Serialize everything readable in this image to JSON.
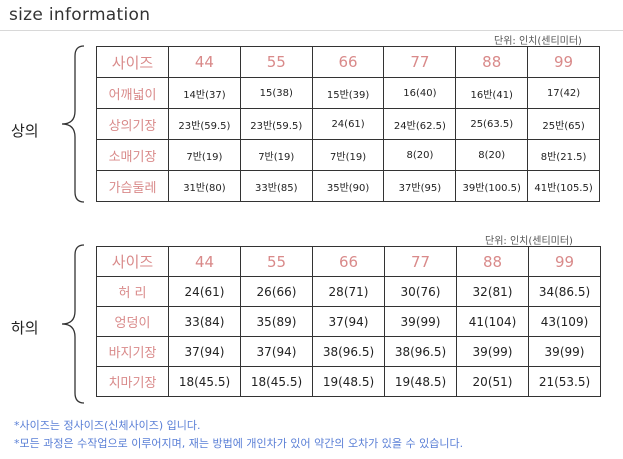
{
  "title": "size  information",
  "top": {
    "side_label": "상의",
    "unit_note": "단위: 인치(센티미터)",
    "table": {
      "header_label": "사이즈",
      "sizes": [
        "44",
        "55",
        "66",
        "77",
        "88",
        "99"
      ],
      "rows": [
        {
          "label": "어깨넓이",
          "values": [
            "14반(37)",
            "15(38)",
            "15반(39)",
            "16(40)",
            "16반(41)",
            "17(42)"
          ]
        },
        {
          "label": "상의기장",
          "values": [
            "23반(59.5)",
            "23반(59.5)",
            "24(61)",
            "24반(62.5)",
            "25(63.5)",
            "25반(65)"
          ]
        },
        {
          "label": "소매기장",
          "values": [
            "7반(19)",
            "7반(19)",
            "7반(19)",
            "8(20)",
            "8(20)",
            "8반(21.5)"
          ]
        },
        {
          "label": "가슴둘레",
          "values": [
            "31반(80)",
            "33반(85)",
            "35반(90)",
            "37반(95)",
            "39반(100.5)",
            "41반(105.5)"
          ]
        }
      ]
    }
  },
  "bottom": {
    "side_label": "하의",
    "unit_note": "단위: 인치(센티미터)",
    "table": {
      "header_label": "사이즈",
      "sizes": [
        "44",
        "55",
        "66",
        "77",
        "88",
        "99"
      ],
      "rows": [
        {
          "label": "허 리",
          "values": [
            "24(61)",
            "26(66)",
            "28(71)",
            "30(76)",
            "32(81)",
            "34(86.5)"
          ]
        },
        {
          "label": "엉덩이",
          "values": [
            "33(84)",
            "35(89)",
            "37(94)",
            "39(99)",
            "41(104)",
            "43(109)"
          ]
        },
        {
          "label": "바지기장",
          "values": [
            "37(94)",
            "37(94)",
            "38(96.5)",
            "38(96.5)",
            "39(99)",
            "39(99)"
          ]
        },
        {
          "label": "치마기장",
          "values": [
            "18(45.5)",
            "18(45.5)",
            "19(48.5)",
            "19(48.5)",
            "20(51)",
            "21(53.5)"
          ]
        }
      ]
    }
  },
  "notes": [
    "*사이즈는 정사이즈(신체사이즈) 입니다.",
    "*모든 과정은 수작업으로 이루어지며,  재는 방법에 개인차가 있어 약간의 오차가 있을 수 있습니다."
  ],
  "colors": {
    "label_pink": "#d98a8a",
    "note_blue": "#5a7fd6",
    "border": "#333333"
  }
}
